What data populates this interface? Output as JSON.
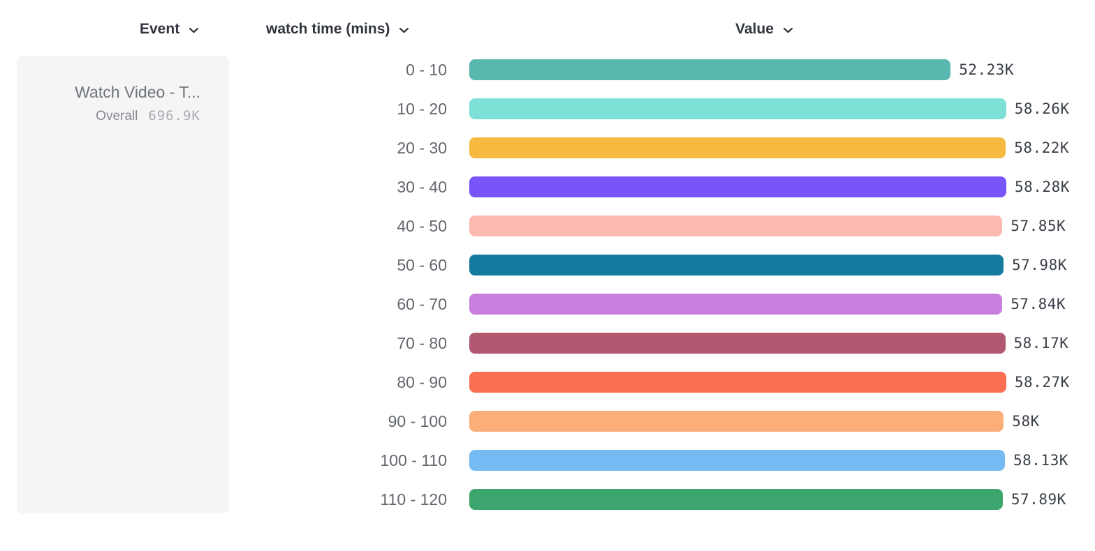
{
  "header": {
    "columns": [
      {
        "id": "event",
        "label": "Event"
      },
      {
        "id": "breakdown",
        "label": "watch time (mins)"
      },
      {
        "id": "value",
        "label": "Value"
      }
    ]
  },
  "event_card": {
    "title": "Watch Video - T...",
    "overall_label": "Overall",
    "overall_value": "696.9K"
  },
  "chart_data": {
    "type": "bar",
    "orientation": "horizontal",
    "title": "",
    "xlabel": "Value",
    "ylabel": "watch time (mins)",
    "event": "Watch Video - T...",
    "overall_total": "696.9K",
    "categories": [
      "0 - 10",
      "10 - 20",
      "20 - 30",
      "30 - 40",
      "40 - 50",
      "50 - 60",
      "60 - 70",
      "70 - 80",
      "80 - 90",
      "90 - 100",
      "100 - 110",
      "110 - 120"
    ],
    "values": [
      52230,
      58260,
      58220,
      58280,
      57850,
      57980,
      57840,
      58170,
      58270,
      58000,
      58130,
      57890
    ],
    "value_labels": [
      "52.23K",
      "58.26K",
      "58.22K",
      "58.28K",
      "57.85K",
      "57.98K",
      "57.84K",
      "58.17K",
      "58.27K",
      "58K",
      "58.13K",
      "57.89K"
    ],
    "colors": [
      "#58b7af",
      "#7de1d8",
      "#f6ba41",
      "#7755fa",
      "#fcbab0",
      "#147a9e",
      "#c77edd",
      "#b15970",
      "#fb7053",
      "#fcae79",
      "#73bbf2",
      "#3ca56e"
    ],
    "xlim": [
      0,
      58280
    ],
    "grid": false,
    "legend": "none"
  }
}
